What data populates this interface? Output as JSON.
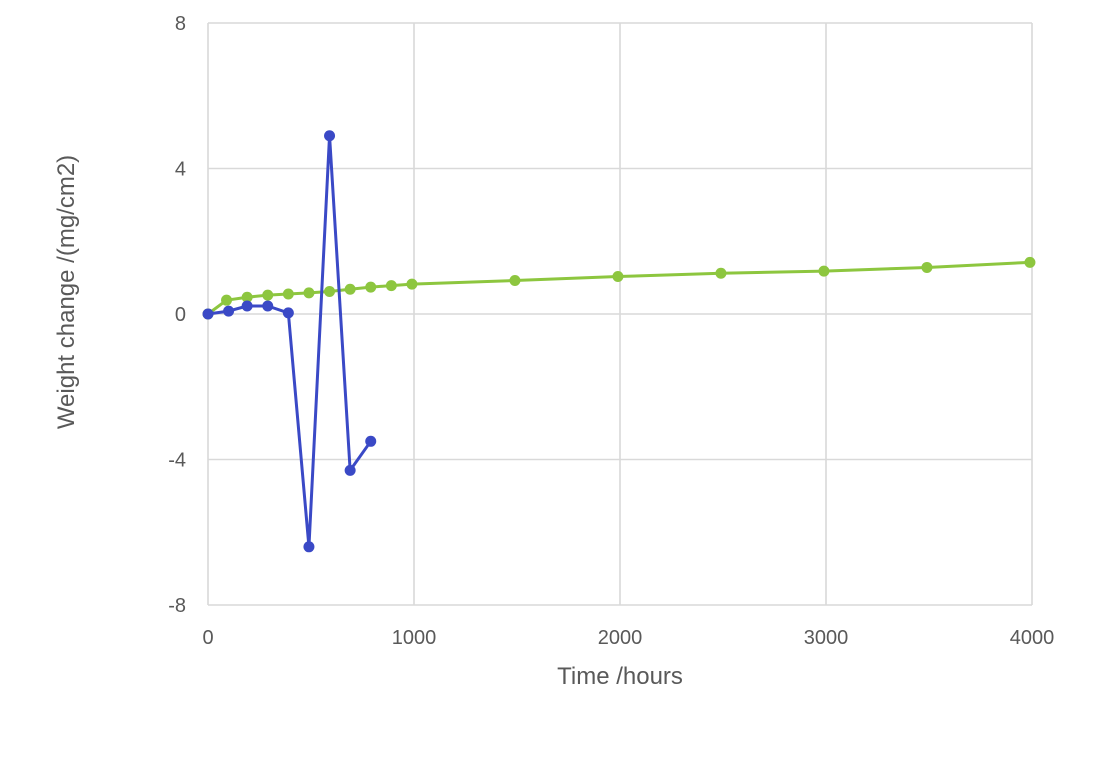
{
  "chart_data": {
    "type": "line",
    "title": "",
    "xlabel": "Time /hours",
    "ylabel": "Weight change /(mg/cm2)",
    "xlim": [
      0,
      4000
    ],
    "ylim": [
      -8,
      8
    ],
    "x_ticks": [
      0,
      1000,
      2000,
      3000,
      4000
    ],
    "y_ticks": [
      -8,
      -4,
      0,
      4,
      8
    ],
    "grid": true,
    "legend": "none",
    "series": [
      {
        "color": "#3a49c6",
        "x": [
          0,
          100,
          190,
          290,
          390,
          490,
          590,
          690,
          790
        ],
        "y": [
          0.0,
          0.08,
          0.22,
          0.22,
          0.03,
          -6.4,
          4.9,
          -4.3,
          -3.5
        ]
      },
      {
        "color": "#8dc63f",
        "x": [
          0,
          90,
          190,
          290,
          390,
          490,
          590,
          690,
          790,
          890,
          990,
          1490,
          1990,
          2490,
          2990,
          3490,
          3990
        ],
        "y": [
          0.0,
          0.38,
          0.46,
          0.52,
          0.55,
          0.58,
          0.62,
          0.68,
          0.74,
          0.78,
          0.82,
          0.92,
          1.03,
          1.12,
          1.18,
          1.28,
          1.42
        ]
      }
    ]
  }
}
